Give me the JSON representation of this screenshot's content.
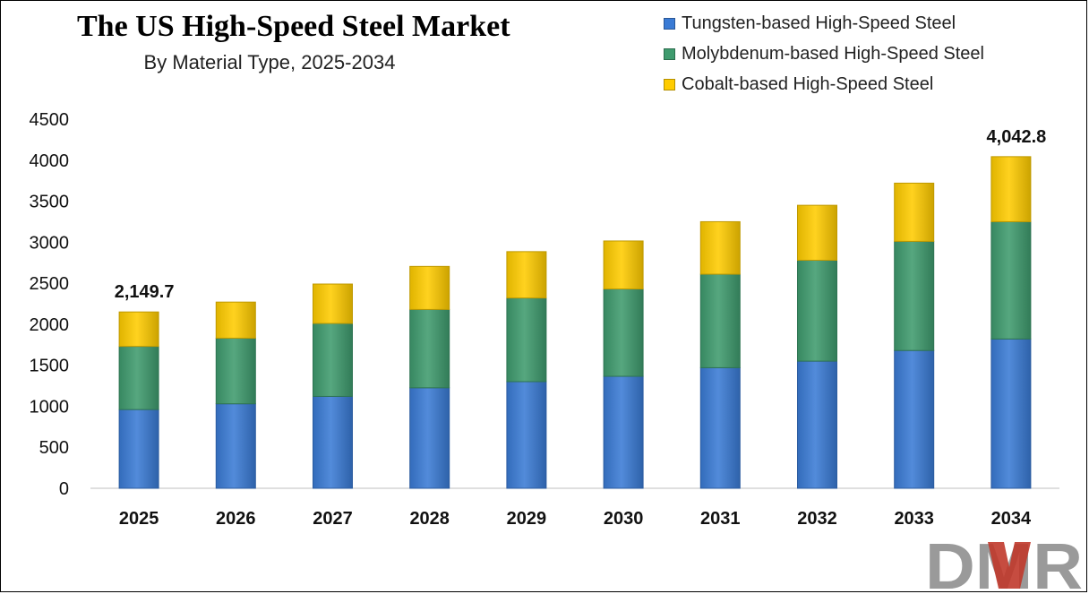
{
  "chart_data": {
    "type": "bar",
    "stacked": true,
    "title": "The US High-Speed Steel Market",
    "subtitle": "By Material Type, 2025-2034",
    "categories": [
      "2025",
      "2026",
      "2027",
      "2028",
      "2029",
      "2030",
      "2031",
      "2032",
      "2033",
      "2034"
    ],
    "series": [
      {
        "name": "Tungsten-based High-Speed Steel",
        "color": "#3a7bd5",
        "values": [
          960,
          1030,
          1120,
          1225,
          1300,
          1365,
          1470,
          1550,
          1680,
          1820
        ]
      },
      {
        "name": "Molybdenum-based High-Speed Steel",
        "color": "#3f9b6e",
        "values": [
          770,
          800,
          890,
          955,
          1020,
          1065,
          1140,
          1230,
          1330,
          1430
        ]
      },
      {
        "name": "Cobalt-based High-Speed Steel",
        "color": "#ffcc00",
        "values": [
          419.7,
          440,
          480,
          525,
          565,
          585,
          640,
          670,
          710,
          792.8
        ]
      }
    ],
    "data_labels": [
      {
        "category": "2025",
        "text": "2,149.7"
      },
      {
        "category": "2034",
        "text": "4,042.8"
      }
    ],
    "ylim": [
      0,
      4500
    ],
    "yticks": [
      0,
      500,
      1000,
      1500,
      2000,
      2500,
      3000,
      3500,
      4000,
      4500
    ],
    "grid": false,
    "legend_position": "top-right"
  },
  "logo": {
    "text": "DMR"
  }
}
